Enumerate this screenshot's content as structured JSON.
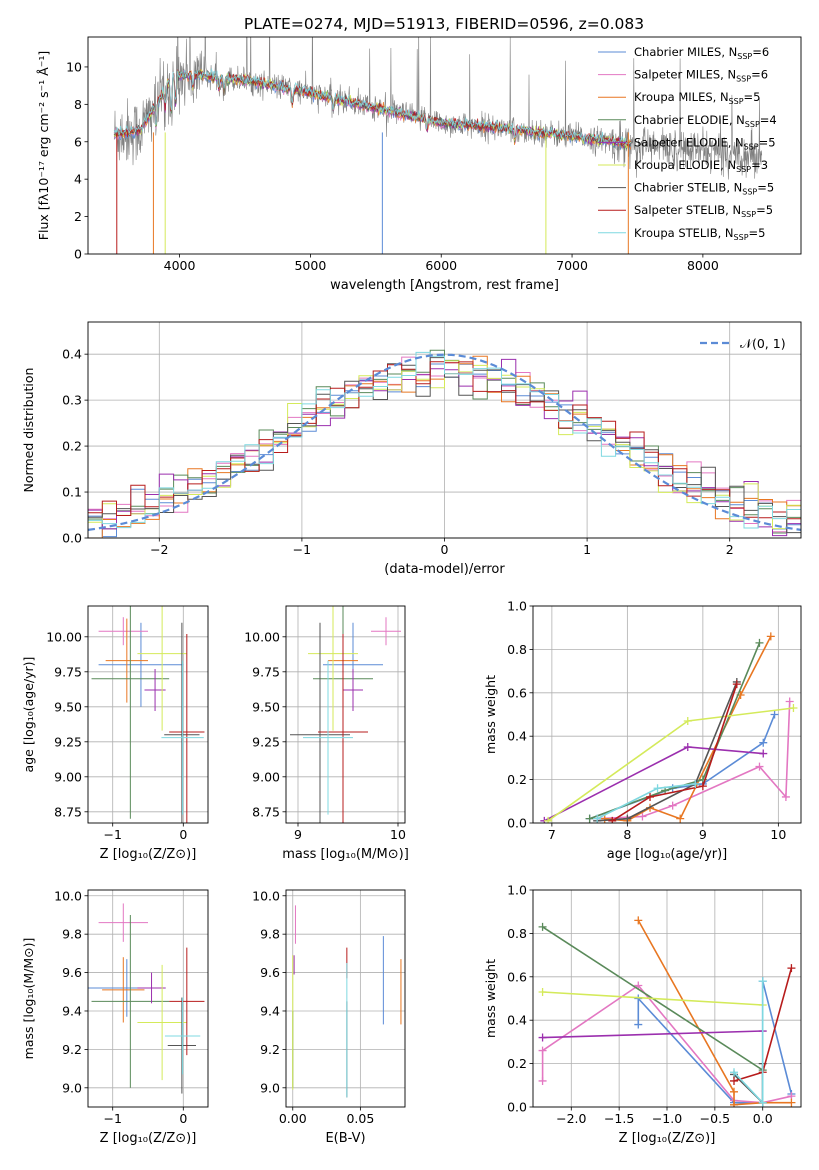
{
  "figure_title": "PLATE=0274, MJD=51913, FIBERID=0596, z=0.083",
  "colors": {
    "Chabrier MILES": "#5b8bd6",
    "Salpeter MILES": "#e377c2",
    "Kroupa MILES": "#e87722",
    "Chabrier ELODIE": "#5a8a5a",
    "Salpeter ELODIE": "#9b2fae",
    "Kroupa ELODIE": "#d4ea5a",
    "Chabrier STELIB": "#555555",
    "Salpeter STELIB": "#b71c1c",
    "Kroupa STELIB": "#7fd8e0",
    "data": "#808080",
    "normal": "#5b8bd6"
  },
  "chart_data": [
    {
      "id": "spectrum",
      "type": "line",
      "xlabel": "wavelength [Angstrom, rest frame]",
      "ylabel": "Flux [fλ10⁻¹⁷ erg cm⁻² s⁻¹ Å⁻¹]",
      "xlim": [
        3300,
        8750
      ],
      "ylim": [
        0,
        11.6
      ],
      "xticks": [
        4000,
        5000,
        6000,
        7000,
        8000
      ],
      "yticks": [
        0,
        2,
        4,
        6,
        8,
        10
      ],
      "legend_position": "top-right",
      "legend": [
        "Chabrier MILES, NSSP=6",
        "Salpeter MILES, NSSP=6",
        "Kroupa MILES, NSSP=5",
        "Chabrier ELODIE, NSSP=4",
        "Salpeter ELODIE, NSSP=5",
        "Kroupa ELODIE, NSSP=3",
        "Chabrier STELIB, NSSP=5",
        "Salpeter STELIB, NSSP=5",
        "Kroupa STELIB, NSSP=5"
      ],
      "data_range": [
        3500,
        8450
      ],
      "model_range": [
        3500,
        7450
      ],
      "continuum": [
        [
          3500,
          6.4
        ],
        [
          3700,
          6.6
        ],
        [
          3950,
          9.5
        ],
        [
          4100,
          9.6
        ],
        [
          4500,
          9.3
        ],
        [
          5000,
          8.6
        ],
        [
          5500,
          7.8
        ],
        [
          6000,
          7.0
        ],
        [
          6500,
          6.7
        ],
        [
          7000,
          6.3
        ],
        [
          7500,
          5.8
        ],
        [
          8000,
          5.5
        ],
        [
          8450,
          5.3
        ]
      ]
    },
    {
      "id": "residuals",
      "type": "step",
      "xlabel": "(data-model)/error",
      "ylabel": "Normed distribution",
      "xlim": [
        -2.5,
        2.5
      ],
      "ylim": [
        0,
        0.47
      ],
      "xticks": [
        -2,
        -1,
        0,
        1,
        2
      ],
      "yticks": [
        0.0,
        0.1,
        0.2,
        0.3,
        0.4
      ],
      "grid": true,
      "legend": "𝒩(0, 1)",
      "legend_position": "top-right",
      "bins": 50
    },
    {
      "id": "age_vs_Z",
      "type": "scatter",
      "xlabel": "Z [log₁₀(Z/Z⊙)]",
      "ylabel": "age  [log₁₀(age/yr)]",
      "xlim": [
        -1.35,
        0.35
      ],
      "ylim": [
        8.67,
        10.22
      ],
      "xticks": [
        -1,
        0
      ],
      "yticks": [
        8.75,
        9.0,
        9.25,
        9.5,
        9.75,
        10.0
      ],
      "grid": true,
      "points": [
        {
          "series": "Chabrier MILES",
          "x": -0.6,
          "y": 9.8,
          "xerr": 0.6,
          "yerr": 0.3
        },
        {
          "series": "Salpeter MILES",
          "x": -0.85,
          "y": 10.04,
          "xerr": 0.35,
          "yerr": 0.1
        },
        {
          "series": "Kroupa MILES",
          "x": -0.8,
          "y": 9.83,
          "xerr": 0.3,
          "yerr": 0.3
        },
        {
          "series": "Chabrier ELODIE",
          "x": -0.75,
          "y": 9.7,
          "xerr": 0.55,
          "yerr": 1.0
        },
        {
          "series": "Salpeter ELODIE",
          "x": -0.4,
          "y": 9.62,
          "xerr": 0.15,
          "yerr": 0.15
        },
        {
          "series": "Kroupa ELODIE",
          "x": -0.3,
          "y": 9.88,
          "xerr": 0.35,
          "yerr": 0.55
        },
        {
          "series": "Chabrier STELIB",
          "x": -0.02,
          "y": 9.3,
          "xerr": 0.25,
          "yerr": 0.8
        },
        {
          "series": "Salpeter STELIB",
          "x": 0.05,
          "y": 9.32,
          "xerr": 0.25,
          "yerr": 0.7
        },
        {
          "series": "Kroupa STELIB",
          "x": -0.01,
          "y": 9.28,
          "xerr": 0.3,
          "yerr": 0.55
        }
      ]
    },
    {
      "id": "age_vs_mass",
      "type": "scatter",
      "xlabel": "mass [log₁₀(M/M⊙)]",
      "ylabel": "",
      "xlim": [
        8.88,
        10.07
      ],
      "ylim": [
        8.67,
        10.22
      ],
      "xticks": [
        9,
        10
      ],
      "yticks": [
        8.75,
        9.0,
        9.25,
        9.5,
        9.75,
        10.0
      ],
      "grid": true,
      "points": [
        {
          "series": "Chabrier MILES",
          "x": 9.55,
          "y": 9.8,
          "xerr": 0.3,
          "yerr": 0.3
        },
        {
          "series": "Salpeter MILES",
          "x": 9.88,
          "y": 10.04,
          "xerr": 0.15,
          "yerr": 0.1
        },
        {
          "series": "Kroupa MILES",
          "x": 9.45,
          "y": 9.83,
          "xerr": 0.15,
          "yerr": 0.3
        },
        {
          "series": "Chabrier ELODIE",
          "x": 9.45,
          "y": 9.7,
          "xerr": 0.3,
          "yerr": 1.0
        },
        {
          "series": "Salpeter ELODIE",
          "x": 9.55,
          "y": 9.62,
          "xerr": 0.1,
          "yerr": 0.15
        },
        {
          "series": "Kroupa ELODIE",
          "x": 9.35,
          "y": 9.88,
          "xerr": 0.25,
          "yerr": 0.55
        },
        {
          "series": "Chabrier STELIB",
          "x": 9.22,
          "y": 9.3,
          "xerr": 0.3,
          "yerr": 0.8
        },
        {
          "series": "Salpeter STELIB",
          "x": 9.45,
          "y": 9.32,
          "xerr": 0.25,
          "yerr": 0.7
        },
        {
          "series": "Kroupa STELIB",
          "x": 9.3,
          "y": 9.28,
          "xerr": 0.25,
          "yerr": 0.55
        }
      ]
    },
    {
      "id": "weight_vs_age",
      "type": "line",
      "xlabel": "age  [log₁₀(age/yr)]",
      "ylabel": "mass weight",
      "xlim": [
        6.75,
        10.3
      ],
      "ylim": [
        0,
        1
      ],
      "xticks": [
        7,
        8,
        9,
        10
      ],
      "yticks": [
        0.0,
        0.2,
        0.4,
        0.6,
        0.8,
        1.0
      ],
      "grid": true,
      "series": [
        {
          "name": "Chabrier MILES",
          "x": [
            7.5,
            8.6,
            9.0,
            9.8,
            9.95
          ],
          "y": [
            0.02,
            0.16,
            0.18,
            0.37,
            0.5
          ]
        },
        {
          "name": "Salpeter MILES",
          "x": [
            7.6,
            8.2,
            8.6,
            9.75,
            10.1,
            10.15
          ],
          "y": [
            0.02,
            0.03,
            0.08,
            0.26,
            0.12,
            0.56
          ]
        },
        {
          "name": "Kroupa MILES",
          "x": [
            7.7,
            8.0,
            8.3,
            8.7,
            9.5,
            9.9
          ],
          "y": [
            0.02,
            0.01,
            0.07,
            0.02,
            0.59,
            0.86
          ]
        },
        {
          "name": "Chabrier ELODIE",
          "x": [
            7.5,
            8.5,
            9.0,
            9.75
          ],
          "y": [
            0.02,
            0.15,
            0.2,
            0.83
          ]
        },
        {
          "name": "Salpeter ELODIE",
          "x": [
            6.9,
            8.8,
            9.8
          ],
          "y": [
            0.01,
            0.35,
            0.32
          ]
        },
        {
          "name": "Kroupa ELODIE",
          "x": [
            6.95,
            8.8,
            10.2
          ],
          "y": [
            0.01,
            0.47,
            0.53
          ]
        },
        {
          "name": "Chabrier STELIB",
          "x": [
            7.6,
            8.0,
            8.9,
            9.45
          ],
          "y": [
            0.01,
            0.02,
            0.18,
            0.65
          ]
        },
        {
          "name": "Salpeter STELIB",
          "x": [
            7.8,
            8.3,
            9.0,
            9.45
          ],
          "y": [
            0.01,
            0.12,
            0.17,
            0.64
          ]
        },
        {
          "name": "Kroupa STELIB",
          "x": [
            7.6,
            8.4,
            8.9
          ],
          "y": [
            0.02,
            0.16,
            0.18
          ]
        }
      ]
    },
    {
      "id": "mass_vs_Z",
      "type": "scatter",
      "xlabel": "Z [log₁₀(Z/Z⊙)]",
      "ylabel": "mass [log₁₀(M/M⊙)]",
      "xlim": [
        -1.35,
        0.35
      ],
      "ylim": [
        8.9,
        10.03
      ],
      "xticks": [
        -1,
        0
      ],
      "yticks": [
        9.0,
        9.2,
        9.4,
        9.6,
        9.8,
        10.0
      ],
      "grid": true,
      "points": [
        {
          "series": "Chabrier MILES",
          "x": -0.8,
          "y": 9.52,
          "xerr": 0.55,
          "yerr": 0.15
        },
        {
          "series": "Salpeter MILES",
          "x": -0.85,
          "y": 9.86,
          "xerr": 0.35,
          "yerr": 0.1
        },
        {
          "series": "Kroupa MILES",
          "x": -0.85,
          "y": 9.51,
          "xerr": 0.3,
          "yerr": 0.17
        },
        {
          "series": "Chabrier ELODIE",
          "x": -0.75,
          "y": 9.45,
          "xerr": 0.55,
          "yerr": 0.45
        },
        {
          "series": "Salpeter ELODIE",
          "x": -0.45,
          "y": 9.52,
          "xerr": 0.2,
          "yerr": 0.08
        },
        {
          "series": "Kroupa ELODIE",
          "x": -0.3,
          "y": 9.34,
          "xerr": 0.35,
          "yerr": 0.3
        },
        {
          "series": "Chabrier STELIB",
          "x": -0.02,
          "y": 9.22,
          "xerr": 0.2,
          "yerr": 0.25
        },
        {
          "series": "Salpeter STELIB",
          "x": 0.05,
          "y": 9.45,
          "xerr": 0.25,
          "yerr": 0.28
        },
        {
          "series": "Kroupa STELIB",
          "x": -0.01,
          "y": 9.27,
          "xerr": 0.25,
          "yerr": 0.2
        }
      ]
    },
    {
      "id": "mass_vs_ebv",
      "type": "scatter",
      "xlabel": "E(B-V)",
      "ylabel": "",
      "xlim": [
        -0.005,
        0.083
      ],
      "ylim": [
        8.9,
        10.03
      ],
      "xticks": [
        0.0,
        0.05
      ],
      "yticks": [
        9.0,
        9.2,
        9.4,
        9.6,
        9.8,
        10.0
      ],
      "grid": true,
      "points": [
        {
          "series": "Chabrier MILES",
          "x": 0.067,
          "y": 9.56,
          "yerr": 0.23
        },
        {
          "series": "Salpeter MILES",
          "x": 0.002,
          "y": 9.85,
          "yerr": 0.1
        },
        {
          "series": "Kroupa MILES",
          "x": 0.08,
          "y": 9.5,
          "yerr": 0.17
        },
        {
          "series": "Chabrier ELODIE",
          "x": 0.0,
          "y": 9.2,
          "yerr": 0.2
        },
        {
          "series": "Salpeter ELODIE",
          "x": 0.001,
          "y": 9.64,
          "yerr": 0.05
        },
        {
          "series": "Kroupa ELODIE",
          "x": 0.0,
          "y": 9.34,
          "yerr": 0.35
        },
        {
          "series": "Chabrier STELIB",
          "x": 0.04,
          "y": 9.2,
          "yerr": 0.25
        },
        {
          "series": "Salpeter STELIB",
          "x": 0.04,
          "y": 9.65,
          "yerr": 0.08
        },
        {
          "series": "Kroupa STELIB",
          "x": 0.04,
          "y": 9.3,
          "yerr": 0.35
        }
      ]
    },
    {
      "id": "weight_vs_Z",
      "type": "line",
      "xlabel": "Z [log₁₀(Z/Z⊙)]",
      "ylabel": "mass weight",
      "xlim": [
        -2.4,
        0.4
      ],
      "ylim": [
        0,
        1
      ],
      "xticks": [
        -2.0,
        -1.5,
        -1.0,
        -0.5,
        0.0
      ],
      "yticks": [
        0.0,
        0.2,
        0.4,
        0.6,
        0.8,
        1.0
      ],
      "grid": true,
      "series": [
        {
          "name": "Chabrier MILES",
          "x": [
            -1.3,
            -1.3,
            -0.3,
            0.0,
            0.0,
            0.3
          ],
          "y": [
            0.38,
            0.5,
            0.02,
            0.02,
            0.58,
            0.06
          ]
        },
        {
          "name": "Salpeter MILES",
          "x": [
            -2.3,
            -2.3,
            -1.3,
            -0.3,
            0.0,
            0.3
          ],
          "y": [
            0.12,
            0.26,
            0.56,
            0.03,
            0.02,
            0.05
          ]
        },
        {
          "name": "Kroupa MILES",
          "x": [
            -1.3,
            -0.3,
            -0.3,
            0.0,
            0.3
          ],
          "y": [
            0.86,
            0.07,
            0.01,
            0.02,
            0.02
          ]
        },
        {
          "name": "Chabrier ELODIE",
          "x": [
            -2.3,
            0.0,
            0.0
          ],
          "y": [
            0.83,
            0.17,
            0.02
          ]
        },
        {
          "name": "Salpeter ELODIE",
          "x": [
            -2.3,
            0.0
          ],
          "y": [
            0.32,
            0.35
          ]
        },
        {
          "name": "Kroupa ELODIE",
          "x": [
            -2.3,
            0.0
          ],
          "y": [
            0.53,
            0.47
          ]
        },
        {
          "name": "Chabrier STELIB",
          "x": [
            -0.3,
            0.0,
            0.0
          ],
          "y": [
            0.15,
            0.02,
            0.2
          ]
        },
        {
          "name": "Salpeter STELIB",
          "x": [
            -0.3,
            0.0,
            0.3
          ],
          "y": [
            0.12,
            0.16,
            0.64
          ]
        },
        {
          "name": "Kroupa STELIB",
          "x": [
            -0.3,
            0.0,
            0.0
          ],
          "y": [
            0.16,
            0.02,
            0.58
          ]
        }
      ]
    }
  ]
}
